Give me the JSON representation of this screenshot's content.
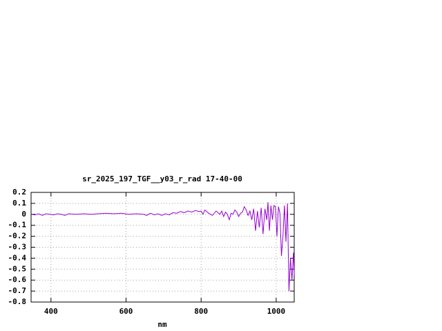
{
  "chart_data": {
    "type": "line",
    "title": "sr_2025_197_TGF__y03_r_rad 17-40-00",
    "x_label": "nm",
    "xlim": [
      347,
      1048
    ],
    "ylim": [
      -0.8,
      0.2
    ],
    "xticks": [
      400,
      600,
      800,
      1000
    ],
    "yticks": [
      0.2,
      0.1,
      0,
      -0.1,
      -0.2,
      -0.3,
      -0.4,
      -0.5,
      -0.6,
      -0.7,
      -0.8
    ],
    "grid": true,
    "series": [
      {
        "color": "#9400d3",
        "x": [
          347,
          357,
          367,
          377,
          387,
          397,
          407,
          417,
          427,
          437,
          447,
          467,
          487,
          507,
          527,
          547,
          567,
          587,
          607,
          627,
          647,
          655,
          665,
          675,
          685,
          695,
          705,
          715,
          725,
          735,
          745,
          755,
          765,
          775,
          785,
          795,
          800,
          805,
          810,
          820,
          830,
          840,
          850,
          855,
          860,
          865,
          870,
          875,
          880,
          885,
          890,
          895,
          900,
          905,
          910,
          915,
          920,
          925,
          930,
          935,
          940,
          945,
          950,
          955,
          960,
          965,
          970,
          975,
          978,
          982,
          986,
          990,
          994,
          998,
          1002,
          1006,
          1010,
          1014,
          1018,
          1022,
          1026,
          1030,
          1034,
          1038,
          1042,
          1046,
          1048
        ],
        "values": [
          0,
          -0.005,
          0.005,
          -0.01,
          0.005,
          0,
          -0.005,
          0.005,
          0,
          -0.01,
          0.005,
          0,
          0.005,
          0,
          0.005,
          0.01,
          0.005,
          0.01,
          0,
          0.005,
          0,
          -0.01,
          0.01,
          -0.005,
          0.005,
          -0.01,
          0.005,
          -0.005,
          0.015,
          0.01,
          0.025,
          0.015,
          0.03,
          0.02,
          0.035,
          0.025,
          0.03,
          0,
          0.04,
          0.01,
          -0.01,
          0.03,
          0,
          0.03,
          -0.02,
          0.02,
          0,
          -0.05,
          0.01,
          0,
          0.04,
          0.02,
          -0.02,
          0.01,
          0.02,
          0.07,
          0.04,
          -0.01,
          0.03,
          -0.05,
          0.05,
          -0.15,
          0.03,
          -0.12,
          0.06,
          -0.18,
          0.05,
          -0.05,
          0.11,
          -0.15,
          0.08,
          -0.05,
          0.08,
          0.07,
          -0.2,
          0.07,
          0.01,
          -0.38,
          -0.2,
          0.08,
          -0.25,
          0.1,
          -0.7,
          -0.4,
          -0.6,
          -0.35,
          -0.55
        ]
      }
    ]
  }
}
